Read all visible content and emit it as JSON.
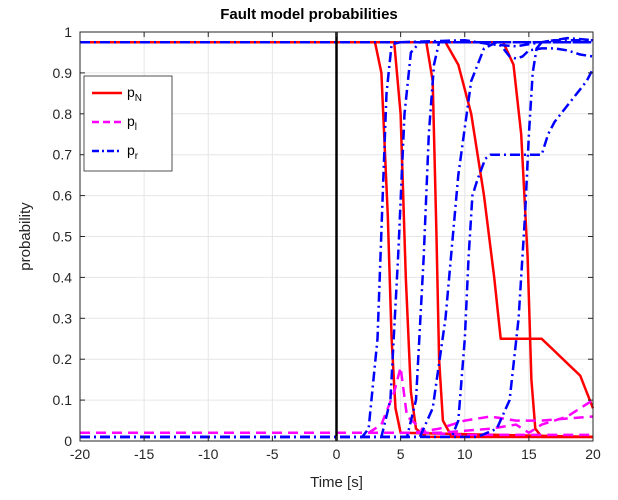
{
  "chart_data": {
    "type": "line",
    "title": "Fault model probabilities",
    "xlabel": "Time [s]",
    "ylabel": "probability",
    "xlim": [
      -20,
      20
    ],
    "ylim": [
      0,
      1
    ],
    "xticks": [
      -20,
      -15,
      -10,
      -5,
      0,
      5,
      10,
      15,
      20
    ],
    "yticks": [
      0,
      0.1,
      0.2,
      0.3,
      0.4,
      0.5,
      0.6,
      0.7,
      0.8,
      0.9,
      1
    ],
    "grid": true,
    "legend_position": "top-left",
    "legend": [
      {
        "base": "p",
        "sub": "N",
        "color": "#ff0000",
        "dash": "solid"
      },
      {
        "base": "p",
        "sub": "l",
        "color": "#ff00ff",
        "dash": "dashed"
      },
      {
        "base": "p",
        "sub": "r",
        "color": "#0000ff",
        "dash": "dashdot"
      }
    ],
    "vertical_line": {
      "x": 0,
      "color": "#000000"
    },
    "series": [
      {
        "group": "pN",
        "color": "#ff0000",
        "dash": "solid",
        "x": [
          -20,
          3.0,
          3.5,
          4.0,
          4.3,
          4.6,
          5.0,
          20
        ],
        "y": [
          0.975,
          0.975,
          0.9,
          0.55,
          0.25,
          0.08,
          0.02,
          0.01
        ]
      },
      {
        "group": "pN",
        "color": "#ff0000",
        "dash": "solid",
        "x": [
          -20,
          4.5,
          5.0,
          5.4,
          5.8,
          6.2,
          7.0,
          20
        ],
        "y": [
          0.975,
          0.975,
          0.8,
          0.4,
          0.12,
          0.03,
          0.01,
          0.01
        ]
      },
      {
        "group": "pN",
        "color": "#ff0000",
        "dash": "solid",
        "x": [
          -20,
          7.0,
          7.5,
          7.8,
          8.0,
          8.3,
          9.0,
          20
        ],
        "y": [
          0.975,
          0.975,
          0.88,
          0.5,
          0.2,
          0.05,
          0.01,
          0.01
        ]
      },
      {
        "group": "pN",
        "color": "#ff0000",
        "dash": "solid",
        "x": [
          -20,
          8.5,
          9.5,
          10.5,
          11.5,
          12.3,
          12.8,
          15.0,
          15.3,
          16.0,
          17.0,
          18.0,
          19.0,
          19.5,
          20.0
        ],
        "y": [
          0.975,
          0.975,
          0.92,
          0.8,
          0.6,
          0.4,
          0.25,
          0.25,
          0.25,
          0.25,
          0.22,
          0.19,
          0.16,
          0.12,
          0.08
        ]
      },
      {
        "group": "pN",
        "color": "#ff0000",
        "dash": "solid",
        "x": [
          -20,
          13.0,
          13.8,
          14.4,
          14.9,
          15.2,
          15.5,
          16.0,
          20
        ],
        "y": [
          0.975,
          0.975,
          0.92,
          0.75,
          0.45,
          0.15,
          0.03,
          0.01,
          0.01
        ]
      },
      {
        "group": "pl",
        "color": "#ff00ff",
        "dash": "dashed",
        "x": [
          -20,
          2.5,
          3.5,
          4.5,
          5.0,
          5.5,
          7.0,
          10.0,
          20
        ],
        "y": [
          0.02,
          0.02,
          0.04,
          0.12,
          0.18,
          0.06,
          0.02,
          0.015,
          0.015
        ]
      },
      {
        "group": "pl",
        "color": "#ff00ff",
        "dash": "dashed",
        "x": [
          -20,
          6.0,
          8.0,
          10.0,
          12.0,
          14.0,
          16.0,
          18.0,
          20.0
        ],
        "y": [
          0.02,
          0.02,
          0.03,
          0.05,
          0.06,
          0.05,
          0.05,
          0.055,
          0.06
        ]
      },
      {
        "group": "pl",
        "color": "#ff00ff",
        "dash": "dashed",
        "x": [
          -20,
          8.0,
          10.0,
          12.0,
          14.0,
          15.0,
          16.0,
          18.0,
          20.0
        ],
        "y": [
          0.02,
          0.02,
          0.025,
          0.03,
          0.04,
          0.02,
          0.04,
          0.06,
          0.1
        ]
      },
      {
        "group": "pr",
        "color": "#0000ff",
        "dash": "dashdot",
        "x": [
          -20,
          2.0,
          2.5,
          3.2,
          3.6,
          3.9,
          4.3,
          5.0,
          20.0
        ],
        "y": [
          0.01,
          0.01,
          0.03,
          0.25,
          0.6,
          0.85,
          0.97,
          0.975,
          0.975
        ]
      },
      {
        "group": "pr",
        "color": "#0000ff",
        "dash": "dashdot",
        "x": [
          -20,
          3.5,
          4.2,
          4.8,
          5.3,
          5.8,
          6.5,
          8.0,
          20.0
        ],
        "y": [
          0.01,
          0.01,
          0.1,
          0.45,
          0.8,
          0.95,
          0.975,
          0.975,
          0.975
        ]
      },
      {
        "group": "pr",
        "color": "#0000ff",
        "dash": "dashdot",
        "x": [
          -20,
          5.5,
          6.2,
          6.8,
          7.2,
          7.6,
          8.0,
          9.0,
          20.0
        ],
        "y": [
          0.01,
          0.01,
          0.1,
          0.45,
          0.75,
          0.92,
          0.975,
          0.975,
          0.975
        ]
      },
      {
        "group": "pr",
        "color": "#0000ff",
        "dash": "dashdot",
        "x": [
          -20,
          6.5,
          7.5,
          8.5,
          9.5,
          10.5,
          11.5,
          12.5,
          13.0,
          13.5,
          14.0,
          14.5,
          15.0,
          16.0,
          17.0,
          18.0,
          19.0,
          20.0
        ],
        "y": [
          0.01,
          0.01,
          0.08,
          0.3,
          0.65,
          0.88,
          0.96,
          0.975,
          0.96,
          0.94,
          0.935,
          0.94,
          0.955,
          0.96,
          0.96,
          0.955,
          0.945,
          0.94
        ]
      },
      {
        "group": "pr",
        "color": "#0000ff",
        "dash": "dashdot",
        "x": [
          -20,
          9.0,
          9.5,
          10.0,
          10.3,
          10.6,
          11.0,
          11.6,
          12.0,
          13.0,
          15.0,
          16.0,
          16.5,
          17.0,
          17.5,
          18.0,
          18.5,
          19.0,
          19.5,
          20.0
        ],
        "y": [
          0.01,
          0.01,
          0.05,
          0.25,
          0.45,
          0.6,
          0.64,
          0.69,
          0.7,
          0.7,
          0.7,
          0.7,
          0.75,
          0.78,
          0.8,
          0.82,
          0.84,
          0.86,
          0.88,
          0.91
        ]
      },
      {
        "group": "pr",
        "color": "#0000ff",
        "dash": "dashdot",
        "x": [
          -20,
          11.0,
          12.5,
          13.5,
          14.2,
          14.7,
          15.0,
          15.3,
          15.6,
          16.0,
          17.0,
          20.0
        ],
        "y": [
          0.01,
          0.01,
          0.03,
          0.1,
          0.3,
          0.55,
          0.75,
          0.9,
          0.96,
          0.975,
          0.98,
          0.98
        ]
      },
      {
        "group": "pr",
        "color": "#0000ff",
        "dash": "dashdot",
        "x": [
          -20,
          5.0,
          10.0,
          12.0,
          14.0,
          16.0,
          18.0,
          20.0
        ],
        "y": [
          0.975,
          0.975,
          0.98,
          0.97,
          0.965,
          0.975,
          0.985,
          0.98
        ]
      }
    ]
  }
}
